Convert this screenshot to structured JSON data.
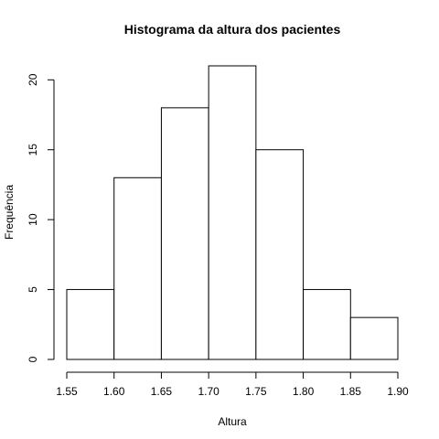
{
  "chart_data": {
    "type": "bar",
    "title": "Histograma da altura dos pacientes",
    "xlabel": "Altura",
    "ylabel": "Frequência",
    "bins": [
      {
        "from": 1.55,
        "to": 1.6,
        "count": 5
      },
      {
        "from": 1.6,
        "to": 1.65,
        "count": 13
      },
      {
        "from": 1.65,
        "to": 1.7,
        "count": 18
      },
      {
        "from": 1.7,
        "to": 1.75,
        "count": 21
      },
      {
        "from": 1.75,
        "to": 1.8,
        "count": 15
      },
      {
        "from": 1.8,
        "to": 1.85,
        "count": 5
      },
      {
        "from": 1.85,
        "to": 1.9,
        "count": 3
      }
    ],
    "xlim": [
      1.55,
      1.9
    ],
    "ylim": [
      0,
      21
    ],
    "x_ticks": [
      "1.55",
      "1.60",
      "1.65",
      "1.70",
      "1.75",
      "1.80",
      "1.85",
      "1.90"
    ],
    "y_ticks": [
      "0",
      "5",
      "10",
      "15",
      "20"
    ],
    "bar_fill": "#ffffff",
    "bar_stroke": "#000000",
    "grid": false
  }
}
